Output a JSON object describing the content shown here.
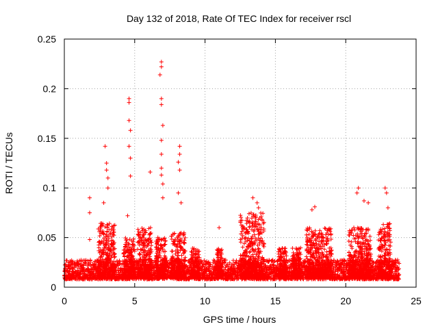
{
  "chart_data": {
    "type": "scatter",
    "title": "Day 132 of 2018, Rate Of TEC Index for receiver rscl",
    "xlabel": "GPS time / hours",
    "ylabel": "ROTI / TECUs",
    "xlim": [
      0,
      25
    ],
    "ylim": [
      0,
      0.25
    ],
    "xticks": [
      0,
      5,
      10,
      15,
      20,
      25
    ],
    "xtick_labels": [
      "0",
      "5",
      "10",
      "15",
      "20",
      "25"
    ],
    "yticks": [
      0,
      0.05,
      0.1,
      0.15,
      0.2,
      0.25
    ],
    "ytick_labels": [
      "0",
      "0.05",
      "0.1",
      "0.15",
      "0.2",
      "0.25"
    ],
    "grid": true,
    "marker": "+",
    "series_color": "#ff0000",
    "baseline_range": [
      0.008,
      0.025
    ],
    "time_extent": [
      0,
      23.8
    ],
    "notable_points": [
      {
        "x": 1.8,
        "y": 0.09
      },
      {
        "x": 1.8,
        "y": 0.075
      },
      {
        "x": 1.8,
        "y": 0.048
      },
      {
        "x": 2.9,
        "y": 0.142
      },
      {
        "x": 3.0,
        "y": 0.125
      },
      {
        "x": 3.0,
        "y": 0.118
      },
      {
        "x": 3.1,
        "y": 0.11
      },
      {
        "x": 3.1,
        "y": 0.1
      },
      {
        "x": 2.8,
        "y": 0.085
      },
      {
        "x": 4.6,
        "y": 0.19
      },
      {
        "x": 4.6,
        "y": 0.186
      },
      {
        "x": 4.6,
        "y": 0.168
      },
      {
        "x": 4.7,
        "y": 0.158
      },
      {
        "x": 4.6,
        "y": 0.142
      },
      {
        "x": 4.7,
        "y": 0.13
      },
      {
        "x": 4.7,
        "y": 0.112
      },
      {
        "x": 4.5,
        "y": 0.072
      },
      {
        "x": 6.1,
        "y": 0.116
      },
      {
        "x": 6.9,
        "y": 0.227
      },
      {
        "x": 6.9,
        "y": 0.222
      },
      {
        "x": 6.8,
        "y": 0.214
      },
      {
        "x": 6.9,
        "y": 0.19
      },
      {
        "x": 6.9,
        "y": 0.184
      },
      {
        "x": 7.0,
        "y": 0.163
      },
      {
        "x": 6.9,
        "y": 0.148
      },
      {
        "x": 6.9,
        "y": 0.134
      },
      {
        "x": 6.9,
        "y": 0.12
      },
      {
        "x": 6.9,
        "y": 0.113
      },
      {
        "x": 7.0,
        "y": 0.104
      },
      {
        "x": 7.0,
        "y": 0.09
      },
      {
        "x": 8.2,
        "y": 0.142
      },
      {
        "x": 8.2,
        "y": 0.134
      },
      {
        "x": 8.1,
        "y": 0.126
      },
      {
        "x": 8.2,
        "y": 0.118
      },
      {
        "x": 8.1,
        "y": 0.095
      },
      {
        "x": 8.3,
        "y": 0.085
      },
      {
        "x": 11.0,
        "y": 0.06
      },
      {
        "x": 13.4,
        "y": 0.09
      },
      {
        "x": 13.7,
        "y": 0.085
      },
      {
        "x": 13.8,
        "y": 0.08
      },
      {
        "x": 17.8,
        "y": 0.081
      },
      {
        "x": 17.6,
        "y": 0.078
      },
      {
        "x": 20.9,
        "y": 0.1
      },
      {
        "x": 20.8,
        "y": 0.095
      },
      {
        "x": 21.3,
        "y": 0.087
      },
      {
        "x": 21.6,
        "y": 0.085
      },
      {
        "x": 22.8,
        "y": 0.1
      },
      {
        "x": 22.9,
        "y": 0.095
      },
      {
        "x": 23.0,
        "y": 0.08
      }
    ],
    "active_windows": [
      {
        "start": 2.4,
        "end": 3.6,
        "peak": 0.065
      },
      {
        "start": 4.2,
        "end": 5.0,
        "peak": 0.05
      },
      {
        "start": 5.2,
        "end": 6.2,
        "peak": 0.06
      },
      {
        "start": 6.5,
        "end": 7.2,
        "peak": 0.05
      },
      {
        "start": 7.6,
        "end": 8.6,
        "peak": 0.055
      },
      {
        "start": 9.0,
        "end": 9.6,
        "peak": 0.04
      },
      {
        "start": 10.8,
        "end": 11.2,
        "peak": 0.04
      },
      {
        "start": 12.5,
        "end": 14.2,
        "peak": 0.075
      },
      {
        "start": 15.2,
        "end": 15.8,
        "peak": 0.04
      },
      {
        "start": 16.2,
        "end": 16.8,
        "peak": 0.04
      },
      {
        "start": 17.2,
        "end": 19.0,
        "peak": 0.06
      },
      {
        "start": 20.2,
        "end": 21.8,
        "peak": 0.06
      },
      {
        "start": 22.3,
        "end": 23.2,
        "peak": 0.065
      }
    ]
  }
}
